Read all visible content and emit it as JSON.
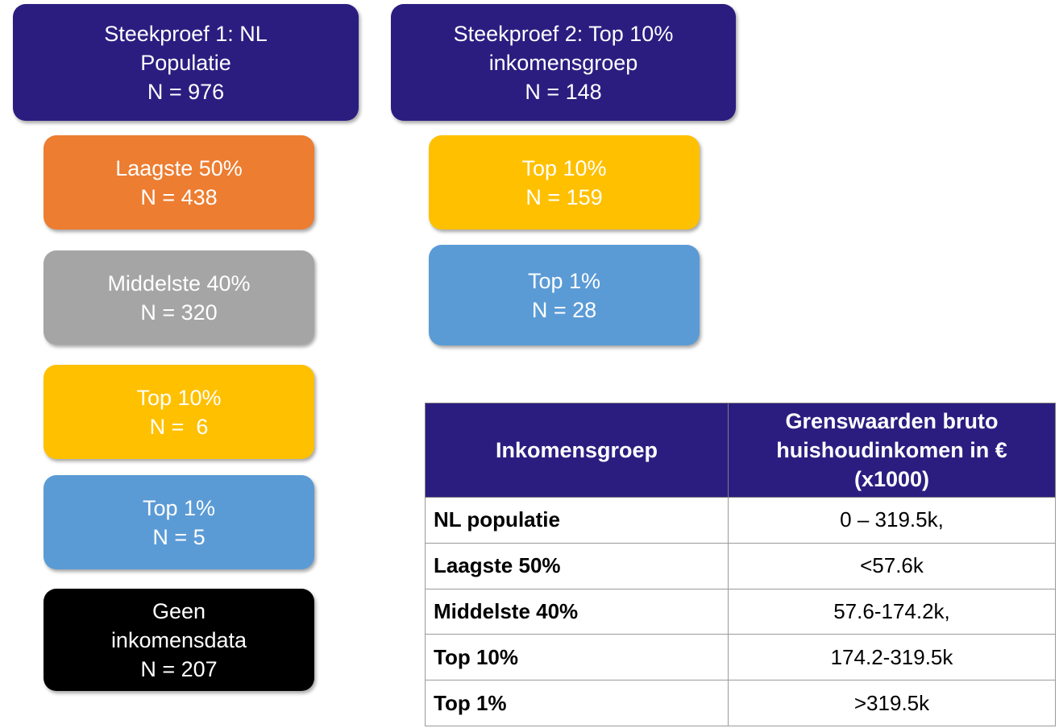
{
  "nodes": [
    {
      "lines": [
        "Steekproef 1: NL",
        "Populatie",
        "N = 976"
      ]
    },
    {
      "lines": [
        "Steekproef 2: Top 10%",
        "inkomensgroep",
        "N = 148"
      ]
    },
    {
      "lines": [
        "Laagste 50%",
        "N = 438"
      ]
    },
    {
      "lines": [
        "Middelste 40%",
        "N = 320"
      ]
    },
    {
      "lines": [
        "Top 10%",
        "N =  6"
      ]
    },
    {
      "lines": [
        "Top 1%",
        "N = 5"
      ]
    },
    {
      "lines": [
        "Geen",
        "inkomensdata",
        "N = 207"
      ]
    },
    {
      "lines": [
        "Top 10%",
        "N = 159"
      ]
    },
    {
      "lines": [
        "Top 1%",
        "N = 28"
      ]
    }
  ],
  "table": {
    "header": [
      [
        "Inkomensgroep"
      ],
      [
        "Grenswaarden bruto",
        "huishoudinkomen in €",
        "(x1000)"
      ]
    ],
    "rows": [
      [
        "NL populatie",
        "0 – 319.5k,"
      ],
      [
        "Laagste 50%",
        "<57.6k"
      ],
      [
        "Middelste 40%",
        "57.6-174.2k,"
      ],
      [
        "Top 10%",
        "174.2-319.5k"
      ],
      [
        "Top 1%",
        ">319.5k"
      ]
    ]
  }
}
